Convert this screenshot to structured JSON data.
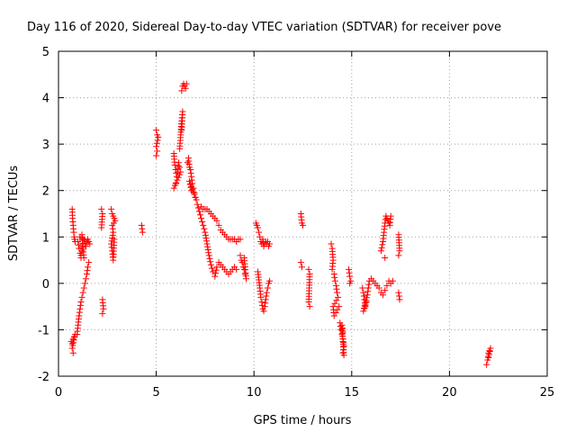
{
  "chart_data": {
    "type": "scatter",
    "title": "Day 116 of 2020, Sidereal Day-to-day VTEC variation (SDTVAR) for receiver pove",
    "xlabel": "GPS time / hours",
    "ylabel": "SDTVAR / TECUs",
    "xlim": [
      0,
      25
    ],
    "ylim": [
      -2,
      5
    ],
    "xticks": [
      0,
      5,
      10,
      15,
      20,
      25
    ],
    "yticks": [
      -2,
      -1,
      0,
      1,
      2,
      3,
      4,
      5
    ],
    "grid": true,
    "marker": "+",
    "color": "#ff0000",
    "series": [
      {
        "name": "SDTVAR",
        "segments": [
          [
            [
              0.65,
              -1.25
            ],
            [
              0.7,
              -1.3
            ],
            [
              0.75,
              -1.2
            ],
            [
              0.8,
              -1.15
            ],
            [
              0.85,
              -1.1
            ],
            [
              0.7,
              -1.4
            ],
            [
              0.75,
              -1.5
            ]
          ],
          [
            [
              0.7,
              1.6
            ],
            [
              0.72,
              1.4
            ],
            [
              0.75,
              1.25
            ],
            [
              0.78,
              1.1
            ],
            [
              0.8,
              1.0
            ],
            [
              0.82,
              0.95
            ],
            [
              0.85,
              0.9
            ]
          ],
          [
            [
              0.95,
              -1.1
            ],
            [
              1.0,
              -0.9
            ],
            [
              1.05,
              -0.7
            ],
            [
              1.1,
              -0.55
            ],
            [
              1.15,
              -0.4
            ],
            [
              1.2,
              -0.3
            ],
            [
              1.25,
              -0.2
            ],
            [
              1.3,
              -0.1
            ],
            [
              1.35,
              0.0
            ],
            [
              1.4,
              0.1
            ],
            [
              1.45,
              0.2
            ],
            [
              1.5,
              0.35
            ],
            [
              1.55,
              0.45
            ]
          ],
          [
            [
              1.0,
              0.9
            ],
            [
              1.05,
              0.75
            ],
            [
              1.1,
              0.65
            ],
            [
              1.15,
              0.6
            ],
            [
              1.2,
              0.7
            ],
            [
              1.25,
              0.85
            ],
            [
              1.3,
              0.95
            ],
            [
              1.35,
              0.85
            ],
            [
              1.4,
              0.8
            ],
            [
              1.45,
              0.9
            ],
            [
              1.5,
              0.95
            ],
            [
              1.55,
              0.9
            ],
            [
              1.6,
              0.85
            ],
            [
              1.1,
              1.0
            ],
            [
              1.2,
              1.05
            ],
            [
              1.3,
              0.55
            ],
            [
              1.15,
              0.55
            ]
          ],
          [
            [
              2.2,
              1.6
            ],
            [
              2.25,
              1.5
            ],
            [
              2.2,
              1.2
            ],
            [
              2.25,
              -0.35
            ],
            [
              2.3,
              -0.55
            ],
            [
              2.25,
              -0.65
            ]
          ],
          [
            [
              2.7,
              1.6
            ],
            [
              2.75,
              1.5
            ],
            [
              2.8,
              1.45
            ],
            [
              2.85,
              1.4
            ],
            [
              2.9,
              1.35
            ],
            [
              2.75,
              1.25
            ],
            [
              2.8,
              1.1
            ],
            [
              2.7,
              0.85
            ],
            [
              2.75,
              0.7
            ],
            [
              2.8,
              0.5
            ],
            [
              2.85,
              0.95
            ]
          ],
          [
            [
              4.25,
              1.25
            ],
            [
              4.3,
              1.1
            ]
          ],
          [
            [
              5.0,
              3.3
            ],
            [
              5.05,
              3.2
            ],
            [
              5.1,
              3.15
            ],
            [
              5.0,
              2.95
            ],
            [
              5.05,
              2.85
            ],
            [
              5.0,
              2.75
            ]
          ],
          [
            [
              5.9,
              2.8
            ],
            [
              5.95,
              2.55
            ],
            [
              6.0,
              2.45
            ],
            [
              6.05,
              2.3
            ],
            [
              6.1,
              2.4
            ],
            [
              6.15,
              2.6
            ],
            [
              6.2,
              2.5
            ],
            [
              6.25,
              2.4
            ],
            [
              5.9,
              2.05
            ],
            [
              6.0,
              2.15
            ]
          ],
          [
            [
              6.2,
              2.9
            ],
            [
              6.25,
              3.2
            ],
            [
              6.3,
              3.5
            ],
            [
              6.35,
              3.7
            ],
            [
              6.3,
              3.3
            ]
          ],
          [
            [
              6.3,
              4.15
            ],
            [
              6.35,
              4.25
            ],
            [
              6.4,
              4.3
            ],
            [
              6.45,
              4.25
            ],
            [
              6.5,
              4.2
            ],
            [
              6.55,
              4.3
            ]
          ],
          [
            [
              6.6,
              2.6
            ],
            [
              6.65,
              2.7
            ],
            [
              6.7,
              2.5
            ],
            [
              6.75,
              2.45
            ],
            [
              6.8,
              2.3
            ],
            [
              6.85,
              2.15
            ],
            [
              6.9,
              2.05
            ],
            [
              6.95,
              1.95
            ],
            [
              7.0,
              1.85
            ],
            [
              7.05,
              1.8
            ],
            [
              6.7,
              2.2
            ],
            [
              6.8,
              2.0
            ]
          ],
          [
            [
              7.1,
              1.7
            ],
            [
              7.2,
              1.55
            ],
            [
              7.3,
              1.4
            ],
            [
              7.4,
              1.25
            ],
            [
              7.5,
              1.1
            ],
            [
              7.6,
              0.85
            ],
            [
              7.7,
              0.6
            ],
            [
              7.8,
              0.4
            ],
            [
              7.9,
              0.25
            ],
            [
              8.0,
              0.15
            ],
            [
              8.1,
              0.35
            ],
            [
              8.2,
              0.45
            ],
            [
              8.3,
              0.4
            ],
            [
              8.4,
              0.35
            ],
            [
              8.5,
              0.3
            ],
            [
              8.6,
              0.25
            ],
            [
              8.7,
              0.2
            ],
            [
              8.8,
              0.25
            ],
            [
              8.9,
              0.3
            ],
            [
              9.0,
              0.35
            ],
            [
              9.1,
              0.3
            ]
          ],
          [
            [
              7.3,
              1.65
            ],
            [
              7.4,
              1.6
            ],
            [
              7.5,
              1.6
            ],
            [
              7.6,
              1.6
            ],
            [
              7.7,
              1.55
            ],
            [
              7.8,
              1.5
            ],
            [
              7.9,
              1.45
            ],
            [
              8.0,
              1.4
            ],
            [
              8.1,
              1.35
            ],
            [
              8.2,
              1.25
            ],
            [
              8.3,
              1.15
            ],
            [
              8.4,
              1.1
            ],
            [
              8.5,
              1.05
            ],
            [
              8.6,
              1.0
            ],
            [
              8.7,
              0.95
            ],
            [
              8.8,
              0.95
            ],
            [
              8.9,
              0.95
            ],
            [
              9.0,
              0.95
            ],
            [
              9.1,
              0.9
            ],
            [
              9.2,
              0.95
            ],
            [
              9.3,
              0.95
            ]
          ],
          [
            [
              9.3,
              0.6
            ],
            [
              9.35,
              0.5
            ],
            [
              9.4,
              0.45
            ],
            [
              9.45,
              0.35
            ],
            [
              9.5,
              0.3
            ],
            [
              9.55,
              0.2
            ],
            [
              9.6,
              0.1
            ],
            [
              9.5,
              0.55
            ]
          ],
          [
            [
              10.1,
              1.3
            ],
            [
              10.15,
              1.25
            ],
            [
              10.2,
              1.2
            ],
            [
              10.25,
              1.1
            ],
            [
              10.3,
              1.0
            ],
            [
              10.35,
              0.9
            ],
            [
              10.4,
              0.85
            ],
            [
              10.45,
              0.95
            ],
            [
              10.5,
              0.8
            ],
            [
              10.55,
              0.85
            ],
            [
              10.6,
              0.9
            ],
            [
              10.65,
              0.85
            ],
            [
              10.7,
              0.9
            ],
            [
              10.75,
              0.8
            ],
            [
              10.8,
              0.85
            ]
          ],
          [
            [
              10.2,
              0.25
            ],
            [
              10.3,
              -0.1
            ],
            [
              10.35,
              -0.3
            ],
            [
              10.4,
              -0.4
            ],
            [
              10.45,
              -0.55
            ],
            [
              10.5,
              -0.6
            ],
            [
              10.55,
              -0.5
            ],
            [
              10.6,
              -0.35
            ],
            [
              10.65,
              -0.2
            ],
            [
              10.7,
              -0.1
            ],
            [
              10.75,
              0.0
            ],
            [
              10.8,
              0.05
            ]
          ],
          [
            [
              12.4,
              1.5
            ],
            [
              12.45,
              1.3
            ],
            [
              12.5,
              1.25
            ],
            [
              12.4,
              0.45
            ],
            [
              12.45,
              0.35
            ]
          ],
          [
            [
              12.8,
              0.3
            ],
            [
              12.85,
              0.2
            ],
            [
              12.8,
              -0.4
            ],
            [
              12.85,
              -0.5
            ]
          ],
          [
            [
              13.95,
              0.85
            ],
            [
              14.0,
              0.75
            ],
            [
              14.05,
              0.5
            ],
            [
              14.0,
              0.3
            ],
            [
              14.1,
              0.2
            ],
            [
              14.15,
              0.05
            ],
            [
              14.2,
              -0.05
            ],
            [
              14.25,
              -0.2
            ],
            [
              14.3,
              -0.3
            ],
            [
              14.05,
              -0.5
            ],
            [
              14.1,
              -0.7
            ],
            [
              14.35,
              -0.5
            ]
          ],
          [
            [
              14.4,
              -0.85
            ],
            [
              14.45,
              -1.0
            ],
            [
              14.5,
              -1.1
            ],
            [
              14.55,
              -1.2
            ],
            [
              14.6,
              -1.35
            ],
            [
              14.55,
              -1.5
            ],
            [
              14.6,
              -1.55
            ],
            [
              14.5,
              -0.9
            ],
            [
              14.55,
              -1.05
            ]
          ],
          [
            [
              14.85,
              0.3
            ],
            [
              14.9,
              0.15
            ],
            [
              14.95,
              0.05
            ],
            [
              14.9,
              0.0
            ]
          ],
          [
            [
              15.55,
              -0.1
            ],
            [
              15.6,
              -0.2
            ],
            [
              15.65,
              -0.35
            ],
            [
              15.7,
              -0.5
            ],
            [
              15.75,
              -0.4
            ],
            [
              15.6,
              -0.6
            ],
            [
              15.8,
              -0.25
            ],
            [
              15.85,
              -0.1
            ],
            [
              15.9,
              0.05
            ]
          ],
          [
            [
              16.0,
              0.1
            ],
            [
              16.1,
              0.05
            ],
            [
              16.2,
              0.0
            ],
            [
              16.3,
              -0.05
            ],
            [
              16.4,
              -0.1
            ],
            [
              16.5,
              -0.2
            ],
            [
              16.6,
              -0.25
            ],
            [
              16.7,
              -0.15
            ],
            [
              16.8,
              -0.05
            ],
            [
              16.9,
              0.05
            ],
            [
              17.0,
              0.0
            ],
            [
              17.1,
              0.05
            ]
          ],
          [
            [
              16.5,
              0.7
            ],
            [
              16.6,
              0.9
            ],
            [
              16.65,
              1.1
            ],
            [
              16.7,
              1.3
            ],
            [
              16.75,
              1.45
            ],
            [
              16.8,
              1.4
            ],
            [
              16.85,
              1.35
            ],
            [
              16.9,
              1.3
            ],
            [
              16.95,
              1.25
            ],
            [
              17.0,
              1.45
            ],
            [
              16.7,
              0.55
            ]
          ],
          [
            [
              17.4,
              1.05
            ],
            [
              17.45,
              0.7
            ],
            [
              17.4,
              0.6
            ],
            [
              17.4,
              -0.2
            ],
            [
              17.45,
              -0.35
            ]
          ],
          [
            [
              21.9,
              -1.75
            ],
            [
              21.95,
              -1.65
            ],
            [
              22.0,
              -1.5
            ],
            [
              22.05,
              -1.45
            ],
            [
              22.1,
              -1.4
            ],
            [
              22.0,
              -1.6
            ]
          ]
        ]
      }
    ]
  }
}
